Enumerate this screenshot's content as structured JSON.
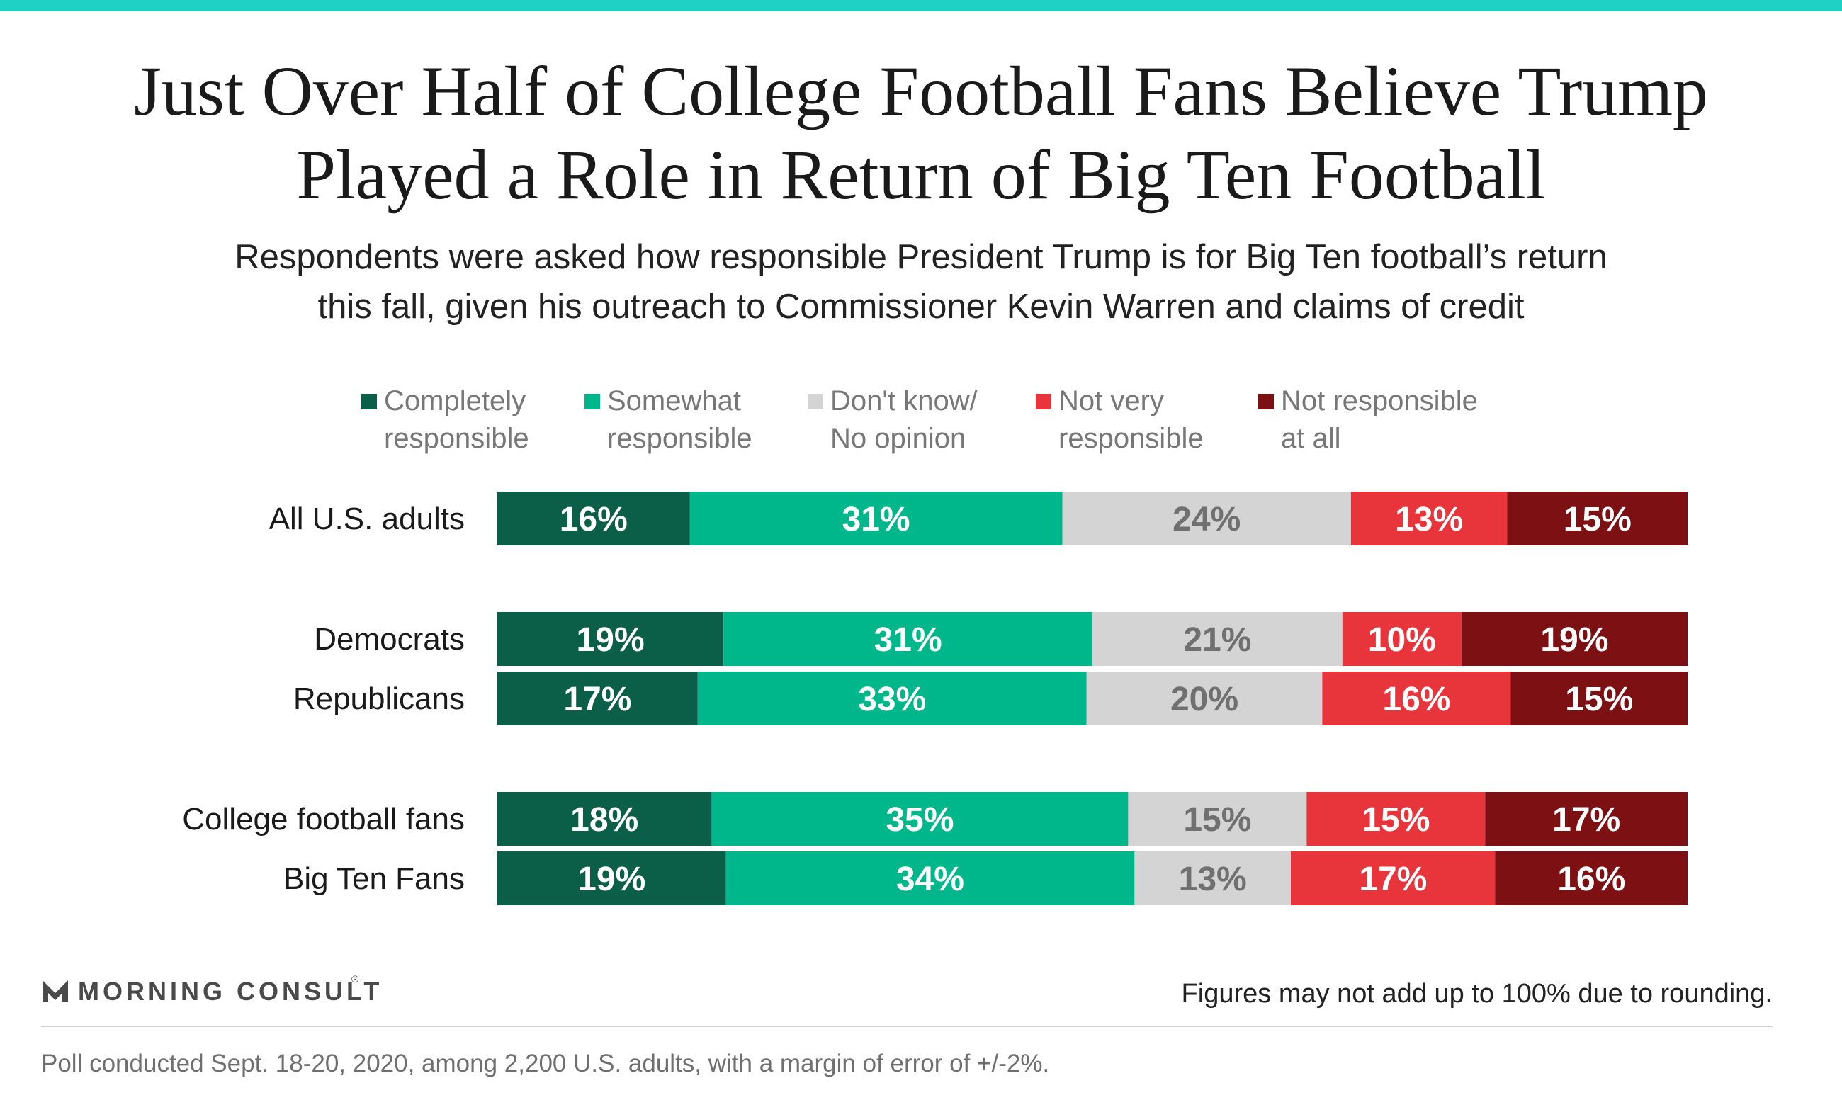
{
  "colors": {
    "top_bar": "#1fd1c5",
    "completely": "#0b5e47",
    "somewhat": "#00b68b",
    "dont_know": "#d4d4d4",
    "not_very": "#e8343b",
    "not_at_all": "#7d1013",
    "label_light": "#ffffff",
    "label_dark": "#707070"
  },
  "header": {
    "title_lines": [
      "Just Over Half of College Football Fans Believe Trump",
      "Played a Role in Return of Big Ten Football"
    ],
    "subtitle_lines": [
      "Respondents were asked how responsible President Trump is for Big Ten football’s return",
      "this fall, given his outreach to Commissioner Kevin Warren and claims of credit"
    ]
  },
  "chart_data": {
    "type": "bar",
    "orientation": "horizontal",
    "stacked": true,
    "categories": [
      "All U.S. adults",
      "Democrats",
      "Republicans",
      "College football fans",
      "Big Ten Fans"
    ],
    "groups": [
      [
        0
      ],
      [
        1,
        2
      ],
      [
        3,
        4
      ]
    ],
    "series": [
      {
        "name_lines": [
          "Completely",
          "responsible"
        ],
        "color_key": "completely",
        "label_color_key": "label_light",
        "values": [
          16,
          19,
          17,
          18,
          19
        ]
      },
      {
        "name_lines": [
          "Somewhat",
          "responsible"
        ],
        "color_key": "somewhat",
        "label_color_key": "label_light",
        "values": [
          31,
          31,
          33,
          35,
          34
        ]
      },
      {
        "name_lines": [
          "Don't know/",
          "No opinion"
        ],
        "color_key": "dont_know",
        "label_color_key": "label_dark",
        "values": [
          24,
          21,
          20,
          15,
          13
        ]
      },
      {
        "name_lines": [
          "Not very",
          "responsible"
        ],
        "color_key": "not_very",
        "label_color_key": "label_light",
        "values": [
          13,
          10,
          16,
          15,
          17
        ]
      },
      {
        "name_lines": [
          "Not responsible",
          "at all"
        ],
        "color_key": "not_at_all",
        "label_color_key": "label_light",
        "values": [
          15,
          19,
          15,
          17,
          16
        ]
      }
    ],
    "value_suffix": "%",
    "legend_position": "top",
    "grid": false
  },
  "footer": {
    "logo_text": "MORNING CONSULT",
    "logo_mark": "®",
    "note": "Figures may not add up to 100% due to rounding.",
    "source": "Poll conducted Sept. 18-20, 2020, among 2,200 U.S. adults, with a margin of error of +/-2%."
  }
}
